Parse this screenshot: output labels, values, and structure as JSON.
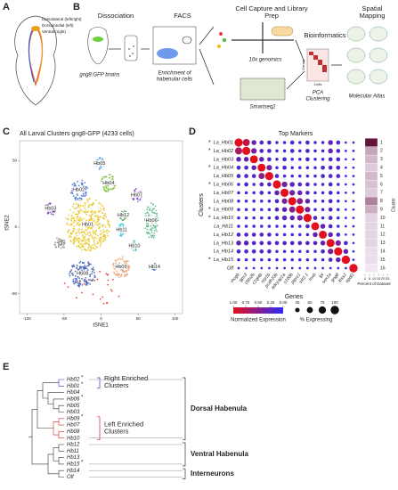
{
  "panel_a": {
    "letter": "A",
    "labels": [
      {
        "text": "Dorsolateral (left/right)",
        "color": "#e8a020"
      },
      {
        "text": "Dorsomedial (left)",
        "color": "#d83020"
      },
      {
        "text": "Ventral (right)",
        "color": "#3050d0"
      }
    ]
  },
  "panel_b": {
    "letter": "B",
    "steps": [
      "Dissociation",
      "FACS",
      "Cell Capture and Library Prep",
      "Bioinformatics",
      "Spatial Mapping"
    ],
    "brains": "gng8:GFP brains",
    "enrich": [
      "Enrichment of",
      "habenular cells"
    ],
    "tenx": "10x genomics",
    "smartseq": "Smartseq2",
    "pca": [
      "PCA",
      "Clustering"
    ],
    "atlas": "Molecular Atlas",
    "cells": "Cells",
    "genes": "Genes"
  },
  "panel_c": {
    "letter": "C",
    "type": "scatter",
    "title": "All Larval Clusters gng8-GFP (4233 cells)",
    "xlabel": "tSNE1",
    "ylabel": "tSNE2",
    "xlim": [
      -110,
      110
    ],
    "ylim": [
      -65,
      65
    ],
    "xticks": [
      -100,
      -50,
      0,
      50,
      100
    ],
    "yticks": [
      -50,
      0,
      50
    ],
    "clusters": [
      {
        "label": "Hb01",
        "color": "#e8c520",
        "x": -18,
        "y": 2
      },
      {
        "label": "Hb02",
        "color": "#3d6fd0",
        "x": -30,
        "y": 28
      },
      {
        "label": "Hb03",
        "color": "#7a3fa0",
        "x": -68,
        "y": 14
      },
      {
        "label": "Hb04",
        "color": "#7dc142",
        "x": 10,
        "y": 33
      },
      {
        "label": "Hb05",
        "color": "#6aa8e0",
        "x": -2,
        "y": 48
      },
      {
        "label": "Hb06",
        "color": "#59b98a",
        "x": 68,
        "y": 5
      },
      {
        "label": "Hb07",
        "color": "#8b4fc8",
        "x": 48,
        "y": 24
      },
      {
        "label": "Hb08",
        "color": "#3e5fb5",
        "x": -25,
        "y": -35
      },
      {
        "label": "Hb09",
        "color": "#e7a070",
        "x": 27,
        "y": -30
      },
      {
        "label": "Hb10",
        "color": "#49b6c9",
        "x": 45,
        "y": -14
      },
      {
        "label": "Hb11",
        "color": "#33c6e0",
        "x": 28,
        "y": -2
      },
      {
        "label": "Hb12",
        "color": "#62a861",
        "x": 30,
        "y": 9
      },
      {
        "label": null,
        "color": "#8a8a8a",
        "x": -55,
        "y": -12
      },
      {
        "label": "Hb14",
        "color": "#4472c4",
        "x": 72,
        "y": -30
      },
      {
        "label": null,
        "color": "#e03020",
        "x": -10,
        "y": -45
      }
    ]
  },
  "panel_d": {
    "letter": "D",
    "type": "dotplot",
    "title": "Top Markers",
    "ylabel": "Clusters",
    "xlabel": "Genes",
    "rows": [
      {
        "label": "La_Hb01",
        "mark": "*"
      },
      {
        "label": "La_Hb02",
        "mark": "*"
      },
      {
        "label": "La_Hb03"
      },
      {
        "label": "La_Hb04",
        "mark": "*"
      },
      {
        "label": "La_Hb05"
      },
      {
        "label": "La_Hb06",
        "mark": "*"
      },
      {
        "label": "La_Hb07"
      },
      {
        "label": "La_Hb08"
      },
      {
        "label": "La_Hb09",
        "mark": "*"
      },
      {
        "label": "La_Hb10",
        "mark": "*"
      },
      {
        "label": "La_Hb11"
      },
      {
        "label": "La_Hb12"
      },
      {
        "label": "La_Hb13"
      },
      {
        "label": "La_Hb14"
      },
      {
        "label": "La_Hb15",
        "mark": "*"
      },
      {
        "label": "Olf"
      }
    ],
    "genes": [
      "rhcgb",
      "gpx3",
      "cbln2b",
      "c1ql4b",
      "nrp1b",
      "pcdh10b",
      "adcyap1a",
      "s100b",
      "ptprz1",
      "sst1.1",
      "tnxb",
      "lpl",
      "sox1a",
      "gng8",
      "kiss1",
      "epdl1"
    ],
    "expression": [
      [
        1,
        0.8,
        0.3,
        0.2,
        0.2,
        0.1,
        0.1,
        0.2,
        0.1,
        0.2,
        0.1,
        0.1,
        0.3,
        0.2,
        0.1,
        0.1
      ],
      [
        0.7,
        1,
        0.4,
        0.2,
        0.2,
        0.1,
        0.1,
        0.2,
        0.1,
        0.2,
        0.1,
        0.1,
        0.3,
        0.2,
        0.1,
        0.1
      ],
      [
        0.3,
        0.3,
        1,
        0.3,
        0.2,
        0.1,
        0.2,
        0.1,
        0.1,
        0.2,
        0.1,
        0.1,
        0.2,
        0.2,
        0.1,
        0.1
      ],
      [
        0.2,
        0.2,
        0.3,
        1,
        0.4,
        0.1,
        0.2,
        0.1,
        0.1,
        0.1,
        0.1,
        0.2,
        0.2,
        0.2,
        0.1,
        0.1
      ],
      [
        0.2,
        0.2,
        0.2,
        0.5,
        1,
        0.2,
        0.1,
        0.1,
        0.1,
        0.1,
        0.1,
        0.2,
        0.2,
        0.2,
        0.1,
        0.1
      ],
      [
        0.1,
        0.2,
        0.1,
        0.2,
        0.2,
        1,
        0.4,
        0.3,
        0.2,
        0.2,
        0.1,
        0.1,
        0.2,
        0.1,
        0.1,
        0.1
      ],
      [
        0.1,
        0.1,
        0.1,
        0.2,
        0.1,
        0.3,
        1,
        0.4,
        0.3,
        0.2,
        0.1,
        0.1,
        0.2,
        0.1,
        0.1,
        0.1
      ],
      [
        0.1,
        0.1,
        0.1,
        0.1,
        0.1,
        0.2,
        0.4,
        1,
        0.5,
        0.3,
        0.1,
        0.1,
        0.2,
        0.1,
        0.1,
        0.1
      ],
      [
        0.1,
        0.1,
        0.1,
        0.1,
        0.1,
        0.2,
        0.3,
        0.5,
        1,
        0.4,
        0.1,
        0.1,
        0.2,
        0.1,
        0.1,
        0.1
      ],
      [
        0.1,
        0.1,
        0.1,
        0.1,
        0.1,
        0.2,
        0.3,
        0.3,
        0.4,
        1,
        0.2,
        0.1,
        0.2,
        0.1,
        0.1,
        0.1
      ],
      [
        0.1,
        0.1,
        0.1,
        0.1,
        0.1,
        0.1,
        0.1,
        0.1,
        0.1,
        0.2,
        1,
        0.3,
        0.2,
        0.1,
        0.1,
        0.1
      ],
      [
        0.2,
        0.2,
        0.2,
        0.2,
        0.2,
        0.1,
        0.1,
        0.1,
        0.1,
        0.1,
        0.3,
        1,
        0.3,
        0.2,
        0.1,
        0.1
      ],
      [
        0.3,
        0.3,
        0.2,
        0.2,
        0.2,
        0.2,
        0.2,
        0.2,
        0.2,
        0.2,
        0.2,
        0.3,
        1,
        0.4,
        0.2,
        0.1
      ],
      [
        0.2,
        0.2,
        0.2,
        0.2,
        0.2,
        0.1,
        0.1,
        0.1,
        0.1,
        0.1,
        0.1,
        0.2,
        0.4,
        1,
        0.3,
        0.1
      ],
      [
        0.1,
        0.1,
        0.1,
        0.1,
        0.1,
        0.1,
        0.1,
        0.1,
        0.1,
        0.1,
        0.1,
        0.1,
        0.2,
        0.3,
        1,
        0.1
      ],
      [
        0.1,
        0.1,
        0.1,
        0.1,
        0.1,
        0.1,
        0.1,
        0.1,
        0.1,
        0.1,
        0.1,
        0.1,
        0.1,
        0.1,
        0.1,
        1
      ]
    ],
    "percent": [
      [
        95,
        70,
        30,
        20,
        20,
        10,
        10,
        20,
        10,
        20,
        10,
        10,
        30,
        20,
        5,
        5
      ],
      [
        70,
        95,
        40,
        20,
        20,
        10,
        10,
        20,
        10,
        20,
        10,
        10,
        30,
        20,
        5,
        5
      ],
      [
        30,
        30,
        90,
        30,
        20,
        10,
        20,
        10,
        10,
        20,
        10,
        10,
        20,
        20,
        5,
        5
      ],
      [
        20,
        20,
        30,
        90,
        40,
        10,
        20,
        10,
        10,
        10,
        10,
        20,
        20,
        20,
        5,
        5
      ],
      [
        20,
        20,
        20,
        50,
        95,
        20,
        10,
        10,
        10,
        10,
        10,
        20,
        20,
        20,
        5,
        5
      ],
      [
        10,
        20,
        10,
        20,
        20,
        95,
        40,
        30,
        20,
        20,
        10,
        10,
        20,
        10,
        5,
        5
      ],
      [
        10,
        10,
        10,
        20,
        10,
        30,
        95,
        40,
        30,
        20,
        10,
        10,
        20,
        10,
        5,
        5
      ],
      [
        10,
        10,
        10,
        10,
        10,
        20,
        40,
        95,
        50,
        30,
        10,
        10,
        20,
        10,
        5,
        5
      ],
      [
        10,
        10,
        10,
        10,
        10,
        20,
        30,
        50,
        95,
        40,
        10,
        10,
        20,
        10,
        5,
        5
      ],
      [
        10,
        10,
        10,
        10,
        10,
        20,
        30,
        30,
        40,
        95,
        20,
        10,
        20,
        10,
        5,
        5
      ],
      [
        10,
        10,
        10,
        10,
        10,
        10,
        10,
        10,
        10,
        20,
        90,
        30,
        20,
        10,
        5,
        5
      ],
      [
        20,
        20,
        20,
        20,
        20,
        10,
        10,
        10,
        10,
        10,
        30,
        90,
        30,
        20,
        5,
        5
      ],
      [
        30,
        30,
        20,
        20,
        20,
        20,
        20,
        20,
        20,
        20,
        20,
        30,
        95,
        40,
        20,
        5
      ],
      [
        20,
        20,
        20,
        20,
        20,
        10,
        10,
        10,
        10,
        10,
        10,
        20,
        40,
        95,
        30,
        5
      ],
      [
        10,
        10,
        10,
        10,
        10,
        10,
        10,
        10,
        10,
        10,
        10,
        10,
        20,
        30,
        100,
        5
      ],
      [
        5,
        5,
        5,
        5,
        5,
        5,
        5,
        5,
        5,
        5,
        5,
        5,
        5,
        5,
        5,
        100
      ]
    ],
    "expr_colors": [
      "#2b2bf5",
      "#e3101e"
    ],
    "expr_title": "Normalized Expression",
    "expr_ticks": [
      {
        "value": 1,
        "label": "1.00"
      },
      {
        "value": 0.75,
        "label": "0.75"
      },
      {
        "value": 0.5,
        "label": "0.50"
      },
      {
        "value": 0.25,
        "label": "0.25"
      },
      {
        "value": 0,
        "label": "0.00"
      }
    ],
    "size_title": "% Expressing",
    "size_ticks": [
      25,
      50,
      75,
      100
    ],
    "dataset_title": "Percent of Dataset",
    "dataset_axis": "Cluster",
    "dataset_categories": [
      "1",
      "2",
      "3",
      "4",
      "5",
      "6",
      "7",
      "8",
      "9",
      "10",
      "11",
      "12",
      "13",
      "14",
      "15",
      "16"
    ],
    "dataset_values": [
      24,
      8,
      6,
      4,
      6,
      5,
      4,
      12,
      7,
      3,
      3,
      3,
      3,
      2,
      2,
      1
    ],
    "dataset_lim": [
      0,
      25
    ],
    "dataset_ticks": [
      0,
      5,
      10,
      15,
      20,
      25
    ],
    "dataset_colors": [
      "#f6f0f8",
      "#5c0b31"
    ]
  },
  "panel_e": {
    "letter": "E",
    "leaves": [
      {
        "label": "Hb02",
        "mark": "*",
        "color": "#3a2fd0"
      },
      {
        "label": "Hb01",
        "mark": "*",
        "color": "#3a2fd0"
      },
      {
        "label": "Hb04",
        "color": "#222"
      },
      {
        "label": "Hb06",
        "mark": "*",
        "color": "#222"
      },
      {
        "label": "Hb05",
        "color": "#222"
      },
      {
        "label": "Hb03",
        "color": "#222"
      },
      {
        "label": "Hb09",
        "mark": "*",
        "color": "#d8202a"
      },
      {
        "label": "Hb07",
        "color": "#d8202a"
      },
      {
        "label": "Hb08",
        "color": "#d8202a"
      },
      {
        "label": "Hb10",
        "color": "#d8202a"
      },
      {
        "label": "Hb12",
        "color": "#222"
      },
      {
        "label": "Hb11",
        "color": "#222"
      },
      {
        "label": "Hb13",
        "color": "#222"
      },
      {
        "label": "Hb15",
        "mark": "*",
        "color": "#222"
      },
      {
        "label": "Hb14",
        "color": "#222"
      },
      {
        "label": "Olf",
        "color": "#222"
      }
    ],
    "right": {
      "lines": [
        "Right Enriched",
        "Clusters"
      ],
      "color": "#3a2fd0"
    },
    "left": {
      "lines": [
        "Left Enriched",
        "Clusters"
      ],
      "color": "#d8202a"
    },
    "groups": [
      "Dorsal Habenula",
      "Ventral Habenula",
      "Interneurons"
    ]
  }
}
